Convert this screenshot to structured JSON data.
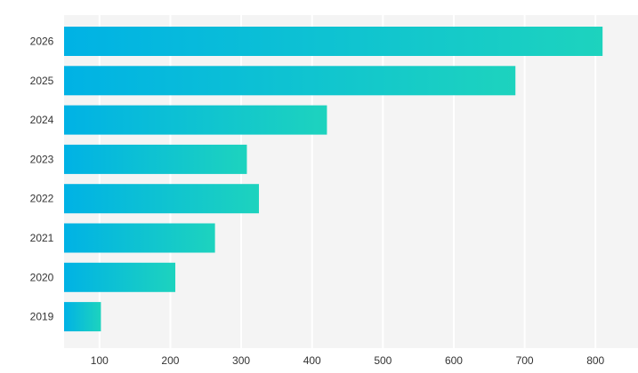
{
  "chart_data": {
    "type": "bar",
    "orientation": "horizontal",
    "categories": [
      "2026",
      "2025",
      "2024",
      "2023",
      "2022",
      "2021",
      "2020",
      "2019"
    ],
    "values": [
      810,
      687,
      421,
      308,
      325,
      263,
      207,
      102
    ],
    "x_ticks": [
      100,
      200,
      300,
      400,
      500,
      600,
      700,
      800
    ],
    "xlim": [
      50,
      860
    ],
    "title": "",
    "xlabel": "",
    "ylabel": "",
    "grid": "vertical",
    "legend": "none",
    "colors": {
      "bar_start": "#00B2E5",
      "bar_end": "#1DD3BE",
      "plot_background": "#F4F4F4",
      "gridline": "#FFFFFF",
      "text": "#333333"
    }
  }
}
